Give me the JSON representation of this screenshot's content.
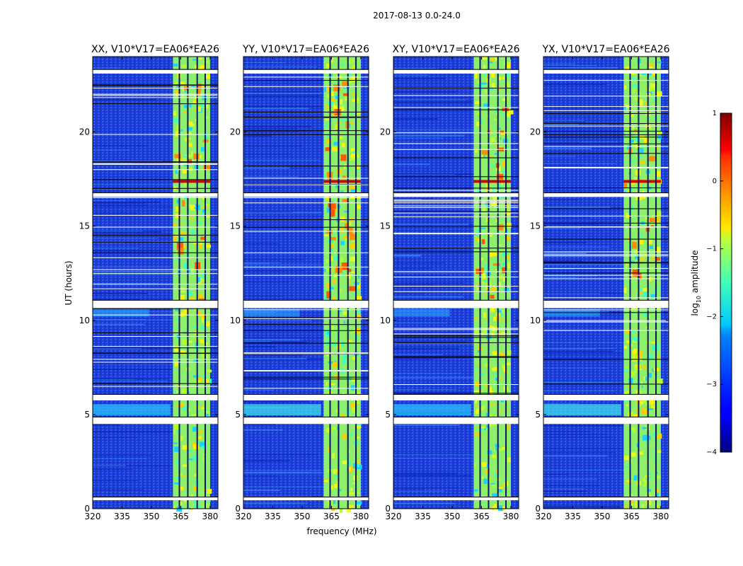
{
  "figure": {
    "suptitle": "2017-08-13 0.0-24.0",
    "xlabel": "frequency (MHz)",
    "ylabel": "UT (hours)"
  },
  "chart_data": {
    "type": "heatmap",
    "x_range": [
      320,
      384
    ],
    "y_range": [
      0,
      24
    ],
    "x_ticks": [
      "320",
      "335",
      "350",
      "365",
      "380"
    ],
    "y_ticks": [
      "0",
      "5",
      "10",
      "15",
      "20"
    ],
    "x_tick_values": [
      320,
      335,
      350,
      365,
      380
    ],
    "y_tick_values": [
      0,
      5,
      10,
      15,
      20
    ],
    "colorbar": {
      "label_prefix": "log",
      "label_sub": "10",
      "label_suffix": " amplitude",
      "range": [
        -4,
        1
      ],
      "ticks": [
        "1",
        "0",
        "−1",
        "−2",
        "−3",
        "−4"
      ],
      "tick_values": [
        1,
        0,
        -1,
        -2,
        -3,
        -4
      ],
      "colormap": "jet"
    },
    "band": {
      "rfi_band_mhz": [
        361,
        380
      ],
      "channel_gaps_mhz": [
        364.3,
        368.6,
        373.4,
        377.5
      ]
    },
    "flagged_gaps_ut": [
      [
        0.45,
        0.6
      ],
      [
        4.5,
        4.85
      ],
      [
        5.75,
        6.05
      ],
      [
        10.65,
        11.05
      ],
      [
        16.55,
        16.75
      ],
      [
        23.1,
        23.3
      ]
    ],
    "panels": [
      {
        "title": "XX, V10*V17=EA06*EA26",
        "peak": "high"
      },
      {
        "title": "YY, V10*V17=EA06*EA26",
        "peak": "highest"
      },
      {
        "title": "XY, V10*V17=EA06*EA26",
        "peak": "high"
      },
      {
        "title": "YX, V10*V17=EA06*EA26",
        "peak": "medium"
      }
    ]
  }
}
